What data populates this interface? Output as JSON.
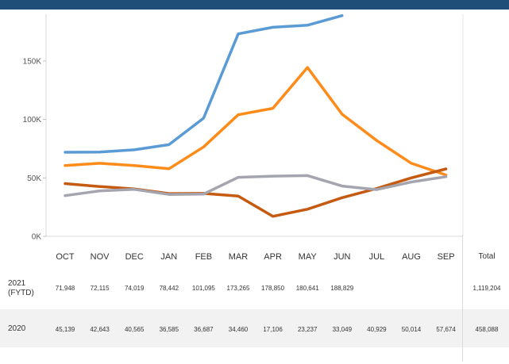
{
  "header": {
    "title": ""
  },
  "chart_data": {
    "type": "line",
    "categories": [
      "OCT",
      "NOV",
      "DEC",
      "JAN",
      "FEB",
      "MAR",
      "APR",
      "MAY",
      "JUN",
      "JUL",
      "AUG",
      "SEP"
    ],
    "ylim": [
      0,
      190000
    ],
    "y_ticks": [
      0,
      50000,
      100000,
      150000
    ],
    "y_tick_labels": [
      "0K",
      "50K",
      "100K",
      "150K"
    ],
    "grid": false,
    "legend": "none",
    "series": [
      {
        "color": "#5b9bd5",
        "values": [
          71948,
          72115,
          74019,
          78442,
          101095,
          173265,
          178850,
          180641,
          188829,
          null,
          null,
          null
        ]
      },
      {
        "color": "#ff8c1a",
        "values": [
          60500,
          62500,
          60500,
          57800,
          76500,
          104000,
          109500,
          144500,
          104500,
          82000,
          62500,
          52500
        ]
      },
      {
        "color": "#c55a11",
        "values": [
          45139,
          42643,
          40565,
          36585,
          36687,
          34460,
          17106,
          23237,
          33049,
          40929,
          50014,
          57674
        ]
      },
      {
        "color": "#a5a5b0",
        "values": [
          34800,
          38900,
          40200,
          35800,
          36200,
          50500,
          51500,
          52000,
          43000,
          40000,
          46500,
          51000
        ]
      }
    ]
  },
  "table": {
    "total_header": "Total",
    "rows": [
      {
        "label": "2021\n(FYTD)",
        "cells": [
          "71,948",
          "72,115",
          "74,019",
          "78,442",
          "101,095",
          "173,265",
          "178,850",
          "180,641",
          "188,829",
          "",
          "",
          ""
        ],
        "total": "1,119,204"
      },
      {
        "label": "2020",
        "cells": [
          "45,139",
          "42,643",
          "40,565",
          "36,585",
          "36,687",
          "34,460",
          "17,106",
          "23,237",
          "33,049",
          "40,929",
          "50,014",
          "57,674"
        ],
        "total": "458,088"
      }
    ]
  }
}
